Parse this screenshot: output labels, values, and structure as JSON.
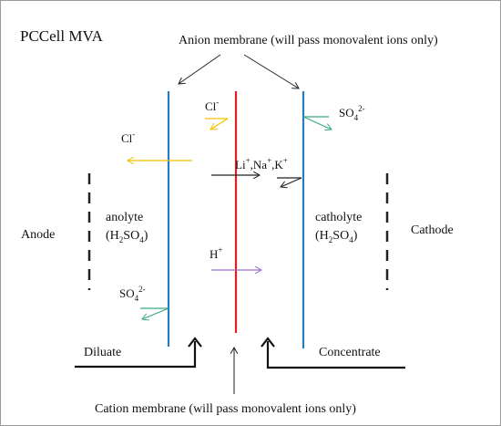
{
  "title": "PCCell MVA",
  "anion_membrane_label": "Anion membrane (will pass monovalent ions only)",
  "cation_membrane_label": "Cation membrane (will pass monovalent ions only)",
  "anode_label": "Anode",
  "cathode_label": "Cathode",
  "anolyte": {
    "name": "anolyte",
    "acid_base": "(H",
    "acid_sub": "2",
    "acid_rest": "SO",
    "acid_sub2": "4",
    "acid_close": ")"
  },
  "catholyte": {
    "name": "catholyte",
    "acid_base": "(H",
    "acid_sub": "2",
    "acid_rest": "SO",
    "acid_sub2": "4",
    "acid_close": ")"
  },
  "diluate_label": "Diluate",
  "concentrate_label": "Concentrate",
  "ions": {
    "cl_left": {
      "base": "Cl",
      "sup": "-"
    },
    "cl_center": {
      "base": "Cl",
      "sup": "-"
    },
    "so4_top": {
      "base": "SO",
      "sub": "4",
      "sup": "2-"
    },
    "so4_bottom": {
      "base": "SO",
      "sub": "4",
      "sup": "2-"
    },
    "h": {
      "base": "H",
      "sup": "+"
    },
    "li": {
      "base": "Li",
      "sup": "+"
    },
    "na": {
      "base": "Na",
      "sup": "+"
    },
    "k": {
      "base": "K",
      "sup": "+"
    },
    "comma": ","
  },
  "colors": {
    "anion_membrane": "#2a7ab8",
    "cation_membrane": "#e02020",
    "chloride_arrow": "#f2c200",
    "sulfate_arrow": "#3aaa80",
    "proton_arrow": "#9a70c8",
    "cation_arrow": "#222222"
  }
}
